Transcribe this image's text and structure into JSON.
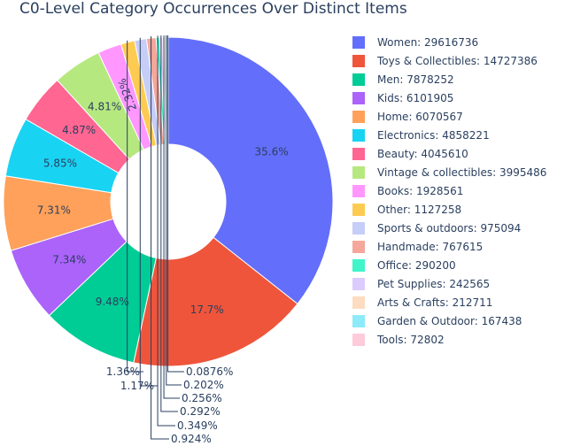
{
  "chart_data": {
    "type": "pie",
    "hole": true,
    "title": "C0-Level Category Occurrences Over Distinct Items",
    "legend_position": "right",
    "slices": [
      {
        "label": "Women",
        "value": 29616736,
        "percent_label": "35.6%",
        "color": "#636efa"
      },
      {
        "label": "Toys & Collectibles",
        "value": 14727386,
        "percent_label": "17.7%",
        "color": "#ef553b"
      },
      {
        "label": "Men",
        "value": 7878252,
        "percent_label": "9.48%",
        "color": "#00cc96"
      },
      {
        "label": "Kids",
        "value": 6101905,
        "percent_label": "7.34%",
        "color": "#ab63fa"
      },
      {
        "label": "Home",
        "value": 6070567,
        "percent_label": "7.31%",
        "color": "#ffa15a"
      },
      {
        "label": "Electronics",
        "value": 4858221,
        "percent_label": "5.85%",
        "color": "#19d3f3"
      },
      {
        "label": "Beauty",
        "value": 4045610,
        "percent_label": "4.87%",
        "color": "#ff6692"
      },
      {
        "label": "Vintage & collectibles",
        "value": 3995486,
        "percent_label": "4.81%",
        "color": "#b6e880"
      },
      {
        "label": "Books",
        "value": 1928561,
        "percent_label": "2.32%",
        "color": "#ff97ff"
      },
      {
        "label": "Other",
        "value": 1127258,
        "percent_label": "1.36%",
        "color": "#fecb52"
      },
      {
        "label": "Sports & outdoors",
        "value": 975094,
        "percent_label": "1.17%",
        "color": "#c6cdf7"
      },
      {
        "label": "Handmade",
        "value": 767615,
        "percent_label": "0.924%",
        "color": "#f4a79a"
      },
      {
        "label": "Office",
        "value": 290200,
        "percent_label": "0.349%",
        "color": "#3ff5c9"
      },
      {
        "label": "Pet Supplies",
        "value": 242565,
        "percent_label": "0.292%",
        "color": "#dccbfd"
      },
      {
        "label": "Arts & Crafts",
        "value": 212711,
        "percent_label": "0.256%",
        "color": "#fddcc1"
      },
      {
        "label": "Garden & Outdoor",
        "value": 167438,
        "percent_label": "0.202%",
        "color": "#8deaf8"
      },
      {
        "label": "Tools",
        "value": 72802,
        "percent_label": "0.0876%",
        "color": "#fdcbd9"
      }
    ]
  }
}
